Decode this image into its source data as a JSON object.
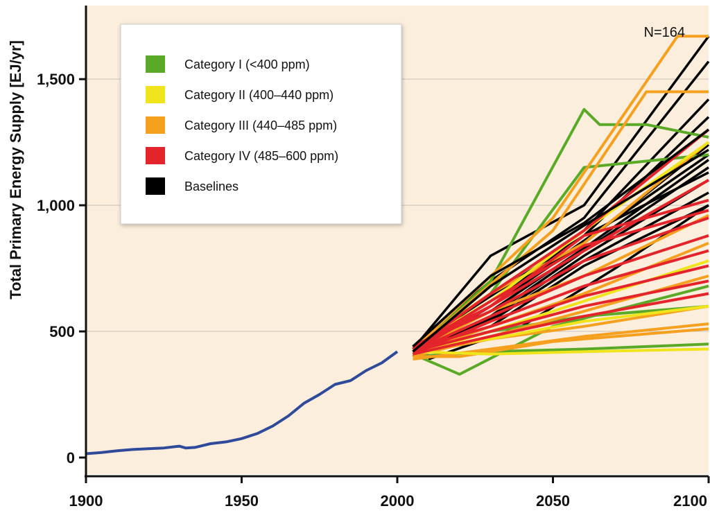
{
  "chart_data": {
    "type": "line",
    "ylabel": "Total Primary Energy Supply [EJ/yr]",
    "xlabel": "",
    "xlim": [
      1900,
      2100
    ],
    "ylim": [
      0,
      1800
    ],
    "x_ticks": [
      1900,
      1950,
      2000,
      2050,
      2100
    ],
    "x_tick_labels": [
      "1900",
      "1950",
      "2000",
      "2050",
      "2100"
    ],
    "y_ticks": [
      0,
      500,
      1000,
      1500
    ],
    "y_tick_labels": [
      "0",
      "500",
      "1,000",
      "1,500"
    ],
    "annotation": "N=164",
    "grid": "horizontal",
    "legend_placement": "top-left",
    "background_color": "#fbeedd",
    "legend": [
      {
        "label": "Category I (<400 ppm)",
        "color": "#5aaa28"
      },
      {
        "label": "Category II (400–440 ppm)",
        "color": "#f0e41c"
      },
      {
        "label": "Category III (440–485 ppm)",
        "color": "#f5a01e"
      },
      {
        "label": "Category IV (485–600 ppm)",
        "color": "#e3242b"
      },
      {
        "label": "Baselines",
        "color": "#000000"
      }
    ],
    "historical": {
      "color": "#2f4a9a",
      "x": [
        1900,
        1905,
        1910,
        1915,
        1920,
        1925,
        1930,
        1932,
        1935,
        1940,
        1945,
        1950,
        1955,
        1960,
        1965,
        1970,
        1975,
        1980,
        1985,
        1990,
        1995,
        2000
      ],
      "values": [
        15,
        20,
        27,
        32,
        35,
        38,
        45,
        38,
        40,
        55,
        62,
        75,
        95,
        125,
        165,
        215,
        250,
        290,
        305,
        345,
        375,
        420
      ]
    },
    "series": [
      {
        "category": "Baselines",
        "color": "#000000",
        "x": [
          2005,
          2030,
          2060,
          2100
        ],
        "values": [
          430,
          800,
          1000,
          1670
        ]
      },
      {
        "category": "Baselines",
        "color": "#000000",
        "x": [
          2005,
          2030,
          2060,
          2100
        ],
        "values": [
          440,
          700,
          950,
          1570
        ]
      },
      {
        "category": "Baselines",
        "color": "#000000",
        "x": [
          2005,
          2030,
          2060,
          2100
        ],
        "values": [
          420,
          650,
          900,
          1420
        ]
      },
      {
        "category": "Baselines",
        "color": "#000000",
        "x": [
          2005,
          2030,
          2060,
          2100
        ],
        "values": [
          430,
          620,
          880,
          1350
        ]
      },
      {
        "category": "Baselines",
        "color": "#000000",
        "x": [
          2005,
          2030,
          2060,
          2100
        ],
        "values": [
          410,
          600,
          850,
          1240
        ]
      },
      {
        "category": "Baselines",
        "color": "#000000",
        "x": [
          2005,
          2030,
          2060,
          2100
        ],
        "values": [
          420,
          580,
          830,
          1180
        ]
      },
      {
        "category": "Baselines",
        "color": "#000000",
        "x": [
          2005,
          2030,
          2060,
          2100
        ],
        "values": [
          400,
          560,
          820,
          1150
        ]
      },
      {
        "category": "Baselines",
        "color": "#000000",
        "x": [
          2005,
          2030,
          2060,
          2100
        ],
        "values": [
          430,
          550,
          800,
          1100
        ]
      },
      {
        "category": "Baselines",
        "color": "#000000",
        "x": [
          2005,
          2030,
          2060,
          2100
        ],
        "values": [
          420,
          540,
          780,
          1050
        ]
      },
      {
        "category": "Baselines",
        "color": "#000000",
        "x": [
          2005,
          2030,
          2060,
          2100
        ],
        "values": [
          410,
          520,
          760,
          1000
        ]
      },
      {
        "category": "Baselines",
        "color": "#000000",
        "x": [
          2010,
          2040,
          2070,
          2100
        ],
        "values": [
          390,
          520,
          750,
          1000
        ]
      },
      {
        "category": "Baselines",
        "color": "#000000",
        "x": [
          2005,
          2030,
          2060,
          2100
        ],
        "values": [
          430,
          600,
          860,
          1200
        ]
      },
      {
        "category": "Baselines",
        "color": "#000000",
        "x": [
          2005,
          2030,
          2060,
          2100
        ],
        "values": [
          440,
          640,
          880,
          1130
        ]
      },
      {
        "category": "Category I (<400 ppm)",
        "color": "#5aaa28",
        "x": [
          2005,
          2030,
          2060,
          2065,
          2080,
          2100
        ],
        "values": [
          420,
          700,
          1380,
          1320,
          1320,
          1270
        ]
      },
      {
        "category": "Category I (<400 ppm)",
        "color": "#5aaa28",
        "x": [
          2005,
          2030,
          2060,
          2100
        ],
        "values": [
          430,
          650,
          1150,
          1200
        ]
      },
      {
        "category": "Category I (<400 ppm)",
        "color": "#5aaa28",
        "x": [
          2005,
          2020,
          2050,
          2100
        ],
        "values": [
          410,
          330,
          520,
          680
        ]
      },
      {
        "category": "Category I (<400 ppm)",
        "color": "#5aaa28",
        "x": [
          2005,
          2030,
          2060,
          2100
        ],
        "values": [
          400,
          420,
          430,
          450
        ]
      },
      {
        "category": "Category I (<400 ppm)",
        "color": "#5aaa28",
        "x": [
          2005,
          2030,
          2060,
          2100
        ],
        "values": [
          420,
          500,
          560,
          600
        ]
      },
      {
        "category": "Category III (440–485 ppm)",
        "color": "#f5a01e",
        "x": [
          2005,
          2050,
          2090,
          2100
        ],
        "values": [
          430,
          950,
          1670,
          1670
        ]
      },
      {
        "category": "Category III (440–485 ppm)",
        "color": "#f5a01e",
        "x": [
          2005,
          2050,
          2080,
          2100
        ],
        "values": [
          420,
          900,
          1450,
          1450
        ]
      },
      {
        "category": "Category III (440–485 ppm)",
        "color": "#f5a01e",
        "x": [
          2005,
          2030,
          2060,
          2100
        ],
        "values": [
          440,
          650,
          850,
          1250
        ]
      },
      {
        "category": "Category III (440–485 ppm)",
        "color": "#f5a01e",
        "x": [
          2005,
          2030,
          2060,
          2100
        ],
        "values": [
          420,
          580,
          720,
          960
        ]
      },
      {
        "category": "Category III (440–485 ppm)",
        "color": "#f5a01e",
        "x": [
          2005,
          2030,
          2060,
          2100
        ],
        "values": [
          410,
          520,
          650,
          850
        ]
      },
      {
        "category": "Category III (440–485 ppm)",
        "color": "#f5a01e",
        "x": [
          2005,
          2030,
          2060,
          2100
        ],
        "values": [
          400,
          480,
          580,
          720
        ]
      },
      {
        "category": "Category III (440–485 ppm)",
        "color": "#f5a01e",
        "x": [
          2005,
          2030,
          2060,
          2100
        ],
        "values": [
          410,
          470,
          520,
          600
        ]
      },
      {
        "category": "Category III (440–485 ppm)",
        "color": "#f5a01e",
        "x": [
          2005,
          2030,
          2060,
          2100
        ],
        "values": [
          390,
          430,
          480,
          530
        ]
      },
      {
        "category": "Category III (440–485 ppm)",
        "color": "#f5a01e",
        "x": [
          2005,
          2020,
          2050,
          2100
        ],
        "values": [
          400,
          400,
          460,
          510
        ]
      },
      {
        "category": "Category II (400–440 ppm)",
        "color": "#f0e41c",
        "x": [
          2005,
          2030,
          2060,
          2100
        ],
        "values": [
          420,
          410,
          420,
          430
        ]
      },
      {
        "category": "Category II (400–440 ppm)",
        "color": "#f0e41c",
        "x": [
          2005,
          2030,
          2060,
          2100
        ],
        "values": [
          430,
          470,
          540,
          600
        ]
      },
      {
        "category": "Category II (400–440 ppm)",
        "color": "#f0e41c",
        "x": [
          2005,
          2030,
          2060,
          2100
        ],
        "values": [
          440,
          620,
          900,
          1250
        ]
      },
      {
        "category": "Category II (400–440 ppm)",
        "color": "#f0e41c",
        "x": [
          2005,
          2030,
          2060,
          2100
        ],
        "values": [
          410,
          500,
          620,
          780
        ]
      },
      {
        "category": "Category IV (485–600 ppm)",
        "color": "#e3242b",
        "x": [
          2005,
          2030,
          2060,
          2100
        ],
        "values": [
          430,
          650,
          900,
          1300
        ]
      },
      {
        "category": "Category IV (485–600 ppm)",
        "color": "#e3242b",
        "x": [
          2005,
          2030,
          2060,
          2100
        ],
        "values": [
          420,
          600,
          820,
          1100
        ]
      },
      {
        "category": "Category IV (485–600 ppm)",
        "color": "#e3242b",
        "x": [
          2005,
          2030,
          2060,
          2100
        ],
        "values": [
          440,
          580,
          780,
          950
        ]
      },
      {
        "category": "Category IV (485–600 ppm)",
        "color": "#e3242b",
        "x": [
          2005,
          2030,
          2060,
          2100
        ],
        "values": [
          420,
          560,
          720,
          880
        ]
      },
      {
        "category": "Category IV (485–600 ppm)",
        "color": "#e3242b",
        "x": [
          2005,
          2030,
          2060,
          2100
        ],
        "values": [
          410,
          540,
          680,
          820
        ]
      },
      {
        "category": "Category IV (485–600 ppm)",
        "color": "#e3242b",
        "x": [
          2005,
          2030,
          2060,
          2100
        ],
        "values": [
          430,
          520,
          640,
          760
        ]
      },
      {
        "category": "Category IV (485–600 ppm)",
        "color": "#e3242b",
        "x": [
          2005,
          2030,
          2060,
          2100
        ],
        "values": [
          420,
          500,
          600,
          700
        ]
      },
      {
        "category": "Category IV (485–600 ppm)",
        "color": "#e3242b",
        "x": [
          2005,
          2030,
          2060,
          2100
        ],
        "values": [
          410,
          480,
          560,
          650
        ]
      },
      {
        "category": "Category IV (485–600 ppm)",
        "color": "#e3242b",
        "x": [
          2005,
          2030,
          2060,
          2100
        ],
        "values": [
          440,
          600,
          880,
          1020
        ]
      },
      {
        "category": "Category IV (485–600 ppm)",
        "color": "#e3242b",
        "x": [
          2005,
          2030,
          2060,
          2100
        ],
        "values": [
          430,
          620,
          840,
          980
        ]
      },
      {
        "category": "Baselines",
        "color": "#000000",
        "x": [
          2005,
          2030,
          2060,
          2100
        ],
        "values": [
          440,
          720,
          930,
          1300
        ]
      },
      {
        "category": "Baselines",
        "color": "#000000",
        "x": [
          2005,
          2030,
          2060,
          2100
        ],
        "values": [
          420,
          680,
          920,
          1220
        ]
      }
    ]
  }
}
